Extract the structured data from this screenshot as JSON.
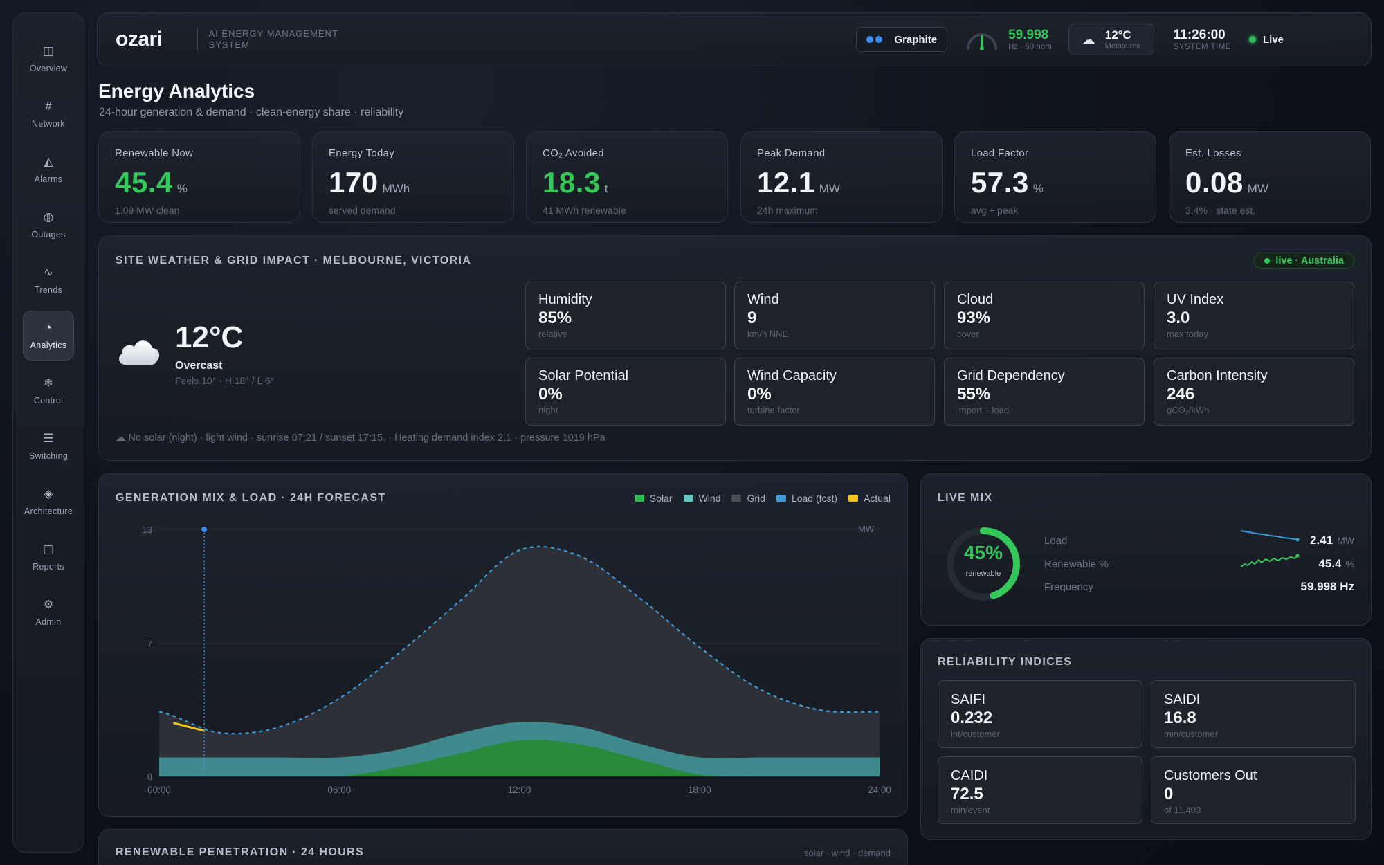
{
  "sidebar": {
    "items": [
      {
        "label": "Overview",
        "icon": "◫"
      },
      {
        "label": "Network",
        "icon": "#"
      },
      {
        "label": "Alarms",
        "icon": "◭"
      },
      {
        "label": "Outages",
        "icon": "◍"
      },
      {
        "label": "Trends",
        "icon": "∿"
      },
      {
        "label": "Analytics",
        "icon": "◔"
      },
      {
        "label": "Control",
        "icon": "❄"
      },
      {
        "label": "Switching",
        "icon": "☰"
      },
      {
        "label": "Architecture",
        "icon": "◈"
      },
      {
        "label": "Reports",
        "icon": "▢"
      },
      {
        "label": "Admin",
        "icon": "⚙"
      }
    ],
    "active": "Analytics"
  },
  "header": {
    "logo": "ozari",
    "subtitle": "AI ENERGY MANAGEMENT SYSTEM",
    "theme_label": "Graphite",
    "frequency": "59.998",
    "frequency_sub": "Hz · 60 nom",
    "weather_temp": "12°C",
    "weather_city": "Melbourne",
    "time": "11:26:00",
    "time_label": "SYSTEM TIME",
    "live_label": "Live"
  },
  "page": {
    "title": "Energy Analytics",
    "subtitle": "24-hour generation & demand · clean-energy share · reliability"
  },
  "kpis": [
    {
      "label": "Renewable Now",
      "value": "45.4",
      "unit": "%",
      "sub": "1.09 MW clean",
      "accent": "green"
    },
    {
      "label": "Energy Today",
      "value": "170",
      "unit": "MWh",
      "sub": "served demand",
      "accent": "white"
    },
    {
      "label": "CO₂ Avoided",
      "value": "18.3",
      "unit": "t",
      "sub": "41 MWh renewable",
      "accent": "green"
    },
    {
      "label": "Peak Demand",
      "value": "12.1",
      "unit": "MW",
      "sub": "24h maximum",
      "accent": "white"
    },
    {
      "label": "Load Factor",
      "value": "57.3",
      "unit": "%",
      "sub": "avg ÷ peak",
      "accent": "white"
    },
    {
      "label": "Est. Losses",
      "value": "0.08",
      "unit": "MW",
      "sub": "3.4% · state est.",
      "accent": "white"
    }
  ],
  "weather": {
    "title": "SITE WEATHER & GRID IMPACT · MELBOURNE, VICTORIA",
    "live_badge": "live · Australia",
    "temp": "12°C",
    "condition": "Overcast",
    "feels": "Feels 10° · H 18° / L 6°",
    "cards": [
      {
        "label": "Humidity",
        "value": "85%",
        "sub": "relative"
      },
      {
        "label": "Wind",
        "value": "9",
        "sub": "km/h NNE"
      },
      {
        "label": "Cloud",
        "value": "93%",
        "sub": "cover"
      },
      {
        "label": "UV Index",
        "value": "3.0",
        "sub": "max today"
      },
      {
        "label": "Solar Potential",
        "value": "0%",
        "sub": "night"
      },
      {
        "label": "Wind Capacity",
        "value": "0%",
        "sub": "turbine factor"
      },
      {
        "label": "Grid Dependency",
        "value": "55%",
        "sub": "import ÷ load"
      },
      {
        "label": "Carbon Intensity",
        "value": "246",
        "sub": "gCO₂/kWh"
      }
    ],
    "note": "☁ No solar (night) · light wind · sunrise 07:21 / sunset 17:15. · Heating demand index 2.1 · pressure 1019 hPa"
  },
  "chart_data": {
    "type": "area",
    "title": "GENERATION MIX & LOAD · 24H FORECAST",
    "unit_label": "MW",
    "x": [
      0,
      2,
      4,
      6,
      8,
      10,
      12,
      14,
      16,
      18,
      20,
      22,
      24
    ],
    "x_tick_labels": [
      "00:00",
      "06:00",
      "12:00",
      "18:00",
      "24:00"
    ],
    "x_tick_positions": [
      0,
      6,
      12,
      18,
      24
    ],
    "y_ticks": [
      0,
      7,
      13
    ],
    "ylim": [
      0,
      13
    ],
    "legend": [
      "Solar",
      "Wind",
      "Grid",
      "Load (fcst)",
      "Actual"
    ],
    "series": [
      {
        "name": "Grid",
        "color": "#3e8a8c",
        "values": [
          1.0,
          1.0,
          1.0,
          1.0,
          1.0,
          1.0,
          1.0,
          1.0,
          1.0,
          1.0,
          1.0,
          1.0,
          1.0
        ]
      },
      {
        "name": "Wind",
        "color": "#3e8a8c",
        "values": [
          0,
          0,
          0,
          0,
          1.2,
          1.9,
          2.2,
          2.0,
          1.3,
          0.4,
          0,
          0,
          0
        ]
      },
      {
        "name": "Solar",
        "color": "#2a8a3c",
        "values": [
          0,
          0,
          0,
          0,
          0.5,
          1.2,
          1.9,
          1.7,
          0.9,
          0.1,
          0,
          0,
          0
        ]
      },
      {
        "name": "Load (fcst)",
        "color": "#3f9ad8",
        "values": [
          3.4,
          2.3,
          2.6,
          4.1,
          6.5,
          9.2,
          11.9,
          11.6,
          9.4,
          6.8,
          4.6,
          3.5,
          3.4
        ]
      },
      {
        "name": "Actual",
        "color": "#f0c419",
        "x": [
          0.5,
          1,
          1.5
        ],
        "values": [
          2.8,
          2.6,
          2.4
        ]
      }
    ],
    "now_marker_x": 1.5
  },
  "live_mix": {
    "title": "LIVE MIX",
    "renewable_pct": "45%",
    "renewable_fraction": 0.45,
    "renewable_label": "renewable",
    "rows": [
      {
        "label": "Load",
        "value": "2.41",
        "unit": "MW"
      },
      {
        "label": "Renewable %",
        "value": "45.4",
        "unit": "%"
      },
      {
        "label": "Frequency",
        "value": "59.998 Hz",
        "unit": ""
      }
    ]
  },
  "reliability": {
    "title": "RELIABILITY INDICES",
    "cards": [
      {
        "label": "SAIFI",
        "value": "0.232",
        "sub": "int/customer"
      },
      {
        "label": "SAIDI",
        "value": "16.8",
        "sub": "min/customer"
      },
      {
        "label": "CAIDI",
        "value": "72.5",
        "sub": "min/event"
      },
      {
        "label": "Customers Out",
        "value": "0",
        "sub": "of 11,403"
      }
    ]
  },
  "penetration": {
    "title": "RENEWABLE PENETRATION · 24 HOURS",
    "legend": "solar · wind · demand"
  },
  "colors": {
    "green": "#34c759",
    "blue": "#3f9ad8",
    "yellow": "#f0c419",
    "teal": "#3e8a8c"
  }
}
